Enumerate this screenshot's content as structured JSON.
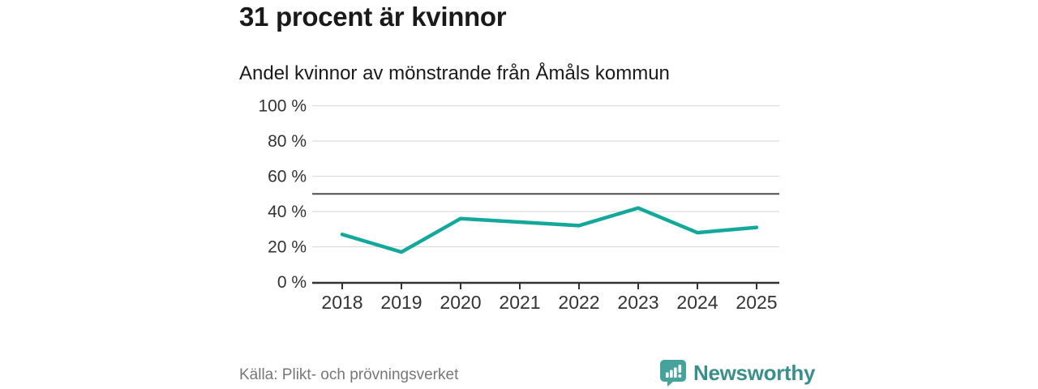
{
  "header": {
    "title": "31 procent är kvinnor"
  },
  "chart_data": {
    "type": "line",
    "title": "Andel kvinnor av mönstrande från Åmåls kommun",
    "x": [
      "2018",
      "2019",
      "2020",
      "2021",
      "2022",
      "2023",
      "2024",
      "2025"
    ],
    "series": [
      {
        "name": "Andel kvinnor av mönstrande från Åmåls kommun",
        "values": [
          27,
          17,
          36,
          34,
          32,
          42,
          28,
          31
        ]
      }
    ],
    "xlabel": "",
    "ylabel": "",
    "ylim": [
      0,
      100
    ],
    "yticks": [
      0,
      20,
      40,
      60,
      80,
      100
    ],
    "ytick_format": "{v} %",
    "reference_line": 50,
    "grid": true,
    "legend": "none"
  },
  "footer": {
    "source": "Källa: Plikt- och prövningsverket",
    "brand": "Newsworthy"
  },
  "colors": {
    "accent": "#13a89a",
    "grid": "#dcdcdc",
    "axis": "#333333",
    "axis_text": "#333333",
    "reference": "#4d4d4d",
    "muted_text": "#777777",
    "brand_text": "#3a8f8a",
    "brand_icon": "#45a39b"
  }
}
